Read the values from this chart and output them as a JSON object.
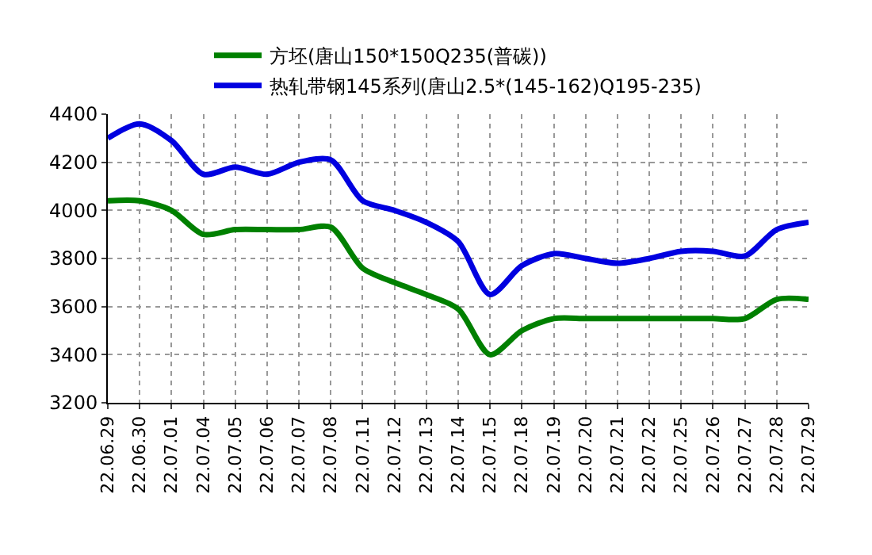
{
  "chart_data": {
    "type": "line",
    "categories": [
      "22.06.29",
      "22.06.30",
      "22.07.01",
      "22.07.04",
      "22.07.05",
      "22.07.06",
      "22.07.07",
      "22.07.08",
      "22.07.11",
      "22.07.12",
      "22.07.13",
      "22.07.14",
      "22.07.15",
      "22.07.18",
      "22.07.19",
      "22.07.20",
      "22.07.21",
      "22.07.22",
      "22.07.25",
      "22.07.26",
      "22.07.27",
      "22.07.28",
      "22.07.29"
    ],
    "series": [
      {
        "name": "方坯(唐山150*150Q235(普碳))",
        "color": "#008000",
        "values": [
          4040,
          4040,
          4000,
          3900,
          3920,
          3920,
          3920,
          3930,
          3760,
          3700,
          3650,
          3590,
          3400,
          3500,
          3550,
          3550,
          3550,
          3550,
          3550,
          3550,
          3550,
          3630,
          3630
        ]
      },
      {
        "name": "热轧带钢145系列(唐山2.5*(145-162)Q195-235)",
        "color": "#0000e0",
        "values": [
          4300,
          4360,
          4290,
          4150,
          4180,
          4150,
          4200,
          4210,
          4040,
          4000,
          3950,
          3870,
          3650,
          3770,
          3820,
          3800,
          3780,
          3800,
          3830,
          3830,
          3810,
          3920,
          3950
        ]
      }
    ],
    "ylim": [
      3200,
      4400
    ],
    "yticks": [
      3200,
      3400,
      3600,
      3800,
      4000,
      4200,
      4400
    ],
    "grid": true,
    "legend": "top",
    "marker": "none",
    "line_style": "solid"
  }
}
